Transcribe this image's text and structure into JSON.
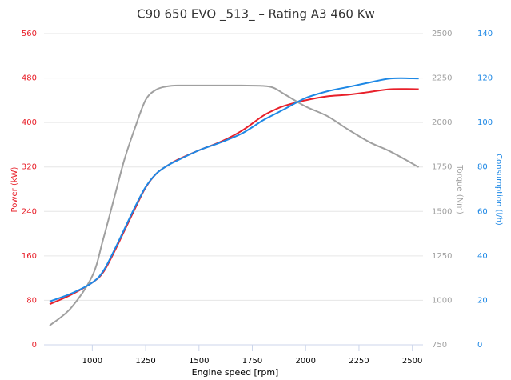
{
  "chart_data": {
    "type": "line",
    "title": "C90 650 EVO _513_ – Rating A3 460 Kw",
    "x_label": "Engine speed [rpm]",
    "y_label": "Power (kW)",
    "y2_label": "Torque (Nm)",
    "y3_label": "Consumption (l/h)",
    "x": [
      800,
      900,
      1000,
      1050,
      1100,
      1150,
      1200,
      1250,
      1300,
      1350,
      1400,
      1500,
      1600,
      1700,
      1800,
      1850,
      1900,
      2000,
      2100,
      2200,
      2300,
      2400,
      2530
    ],
    "xlim": [
      800,
      2550
    ],
    "xticks": [
      1000,
      1250,
      1500,
      1750,
      2000,
      2250,
      2500
    ],
    "ylim": [
      0,
      560
    ],
    "yticks": [
      0,
      80,
      160,
      240,
      320,
      400,
      480,
      560
    ],
    "y2lim": [
      750,
      2500
    ],
    "y2ticks": [
      750,
      1000,
      1250,
      1500,
      1750,
      2000,
      2250,
      2500
    ],
    "y3lim": [
      0,
      140
    ],
    "y3ticks": [
      0,
      20,
      40,
      60,
      80,
      100,
      120,
      140
    ],
    "grid": true,
    "series": [
      {
        "name": "Power",
        "color": "#e8202a",
        "axis": "y",
        "values": [
          73,
          90,
          112,
          130,
          165,
          205,
          245,
          283,
          308,
          322,
          333,
          350,
          365,
          385,
          412,
          422,
          430,
          440,
          447,
          450,
          455,
          460,
          460
        ]
      },
      {
        "name": "Torque",
        "color": "#a0a0a0",
        "axis": "y2",
        "values": [
          858,
          957,
          1137,
          1339,
          1564,
          1790,
          1970,
          2127,
          2185,
          2203,
          2208,
          2208,
          2208,
          2208,
          2206,
          2195,
          2160,
          2090,
          2037,
          1960,
          1889,
          1835,
          1749
        ]
      },
      {
        "name": "Consumption",
        "color": "#1e88e5",
        "axis": "y3",
        "values": [
          19.5,
          23,
          28,
          33,
          42,
          52,
          62,
          71,
          77,
          80.5,
          83,
          87.5,
          91,
          95,
          101,
          103.5,
          106,
          111,
          114,
          116,
          118,
          119.8,
          119.8
        ]
      }
    ]
  }
}
